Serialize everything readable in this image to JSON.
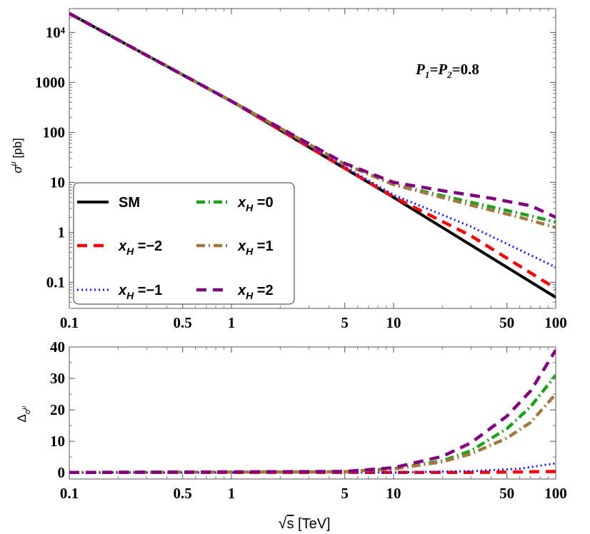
{
  "chart_data": [
    {
      "type": "line",
      "panel": "top",
      "xscale": "log",
      "yscale": "log",
      "xlim": [
        0.1,
        100
      ],
      "ylim": [
        0.03,
        30000
      ],
      "ylabel": "σ^μ [pb]",
      "annotation": "P1=P2=0.8",
      "x_ticks": [
        {
          "v": 0.1,
          "label": "0.1"
        },
        {
          "v": 0.5,
          "label": "0.5"
        },
        {
          "v": 1,
          "label": "1"
        },
        {
          "v": 5,
          "label": "5"
        },
        {
          "v": 10,
          "label": "10"
        },
        {
          "v": 50,
          "label": "50"
        },
        {
          "v": 100,
          "label": "100"
        }
      ],
      "y_ticks": [
        {
          "v": 0.1,
          "label": "0.1"
        },
        {
          "v": 1,
          "label": "1"
        },
        {
          "v": 10,
          "label": "10"
        },
        {
          "v": 100,
          "label": "100"
        },
        {
          "v": 1000,
          "label": "1000"
        },
        {
          "v": 10000,
          "label": "10⁴"
        }
      ],
      "legend": {
        "placement": "bottom-left",
        "columns": 2
      },
      "series": [
        {
          "name": "SM",
          "color": "#000000",
          "style": "solid",
          "x": [
            0.1,
            1,
            10,
            100
          ],
          "y": [
            24000,
            420,
            5.0,
            0.05
          ]
        },
        {
          "name": "x_H = −2",
          "color": "#ff0000",
          "style": "dashed",
          "x": [
            0.1,
            1,
            10,
            30,
            100
          ],
          "y": [
            24000,
            420,
            5.1,
            0.85,
            0.075
          ]
        },
        {
          "name": "x_H = −1",
          "color": "#1515ff",
          "style": "dotted",
          "x": [
            0.1,
            1,
            10,
            30,
            100
          ],
          "y": [
            24000,
            420,
            5.6,
            1.3,
            0.2
          ]
        },
        {
          "name": "x_H = 0",
          "color": "#1ea01e",
          "style": "dashdot",
          "x": [
            0.1,
            1,
            5,
            10,
            30,
            60,
            100
          ],
          "y": [
            24000,
            420,
            23,
            9,
            4.0,
            2.4,
            1.6
          ]
        },
        {
          "name": "x_H = 1",
          "color": "#a07840",
          "style": "dashdot",
          "x": [
            0.1,
            1,
            5,
            10,
            30,
            60,
            100
          ],
          "y": [
            24000,
            420,
            23,
            9,
            3.5,
            2.0,
            1.25
          ]
        },
        {
          "name": "x_H = 2",
          "color": "#800080",
          "style": "dashed",
          "x": [
            0.1,
            1,
            5,
            10,
            20,
            40,
            70,
            100
          ],
          "y": [
            24000,
            420,
            24,
            10,
            6.8,
            4.8,
            3.4,
            2.0
          ]
        }
      ]
    },
    {
      "type": "line",
      "panel": "bottom",
      "xscale": "log",
      "yscale": "linear",
      "xlim": [
        0.1,
        100
      ],
      "ylim": [
        -2,
        40
      ],
      "ylabel": "Δ_σ^μ",
      "xlabel": "√s [TeV]",
      "x_ticks": [
        {
          "v": 0.1,
          "label": "0.1"
        },
        {
          "v": 0.5,
          "label": "0.5"
        },
        {
          "v": 1,
          "label": "1"
        },
        {
          "v": 5,
          "label": "5"
        },
        {
          "v": 10,
          "label": "10"
        },
        {
          "v": 50,
          "label": "50"
        },
        {
          "v": 100,
          "label": "100"
        }
      ],
      "y_ticks": [
        {
          "v": 0,
          "label": "0"
        },
        {
          "v": 10,
          "label": "10"
        },
        {
          "v": 20,
          "label": "20"
        },
        {
          "v": 30,
          "label": "30"
        },
        {
          "v": 40,
          "label": "40"
        }
      ],
      "series": [
        {
          "name": "x_H = −2",
          "color": "#ff0000",
          "style": "dashed",
          "x": [
            0.1,
            10,
            30,
            100
          ],
          "y": [
            0.1,
            0.1,
            0.1,
            0.4
          ]
        },
        {
          "name": "x_H = −1",
          "color": "#1515ff",
          "style": "dotted",
          "x": [
            0.1,
            10,
            30,
            60,
            100
          ],
          "y": [
            0.1,
            0.1,
            0.5,
            1.3,
            3.0
          ]
        },
        {
          "name": "x_H = 0",
          "color": "#1ea01e",
          "style": "dashdot",
          "x": [
            0.1,
            5,
            10,
            20,
            30,
            50,
            70,
            100
          ],
          "y": [
            0.1,
            0.3,
            1.3,
            3.8,
            7,
            14,
            21,
            31
          ]
        },
        {
          "name": "x_H = 1",
          "color": "#a07840",
          "style": "dashdot",
          "x": [
            0.1,
            5,
            10,
            20,
            30,
            50,
            70,
            100
          ],
          "y": [
            0.1,
            0.3,
            1.2,
            3.5,
            6,
            11,
            16,
            25
          ]
        },
        {
          "name": "x_H = 2",
          "color": "#800080",
          "style": "dashed",
          "x": [
            0.1,
            5,
            10,
            20,
            30,
            50,
            70,
            100
          ],
          "y": [
            0.1,
            0.4,
            1.6,
            5.2,
            9.5,
            18,
            26,
            39
          ]
        }
      ]
    }
  ]
}
